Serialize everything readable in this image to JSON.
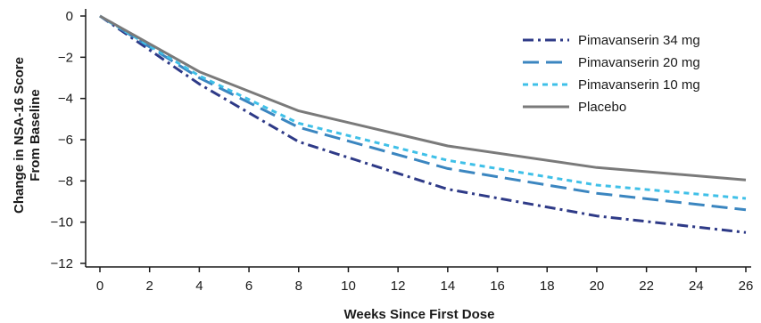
{
  "chart_data": {
    "type": "line",
    "title": "",
    "xlabel": "Weeks Since First Dose",
    "ylabel_lines": [
      "Change in NSA-16 Score",
      "From Baseline"
    ],
    "xlim": [
      0,
      26
    ],
    "ylim": [
      -12,
      0
    ],
    "x_ticks": [
      "0",
      "2",
      "4",
      "6",
      "8",
      "10",
      "12",
      "14",
      "16",
      "18",
      "20",
      "22",
      "24",
      "26"
    ],
    "y_ticks": [
      "0",
      "−2",
      "−4",
      "−6",
      "−8",
      "−10",
      "−12"
    ],
    "grid": false,
    "legend_position": "top-right",
    "x": [
      0,
      4,
      8,
      14,
      20,
      26
    ],
    "series": [
      {
        "name": "Pimavanserin 34 mg",
        "color": "#2e3a87",
        "dash": "dash-dot",
        "values": [
          0,
          -3.3,
          -6.1,
          -8.4,
          -9.7,
          -10.5
        ]
      },
      {
        "name": "Pimavanserin 20 mg",
        "color": "#3b86c0",
        "dash": "long-dash",
        "values": [
          0,
          -3.0,
          -5.4,
          -7.4,
          -8.6,
          -9.4
        ]
      },
      {
        "name": "Pimavanserin 10 mg",
        "color": "#3fc0e8",
        "dash": "short-dash",
        "values": [
          0,
          -2.9,
          -5.2,
          -7.0,
          -8.2,
          -8.85
        ]
      },
      {
        "name": "Placebo",
        "color": "#7a7a7a",
        "dash": "solid",
        "values": [
          0,
          -2.7,
          -4.6,
          -6.3,
          -7.35,
          -7.95
        ]
      }
    ]
  }
}
